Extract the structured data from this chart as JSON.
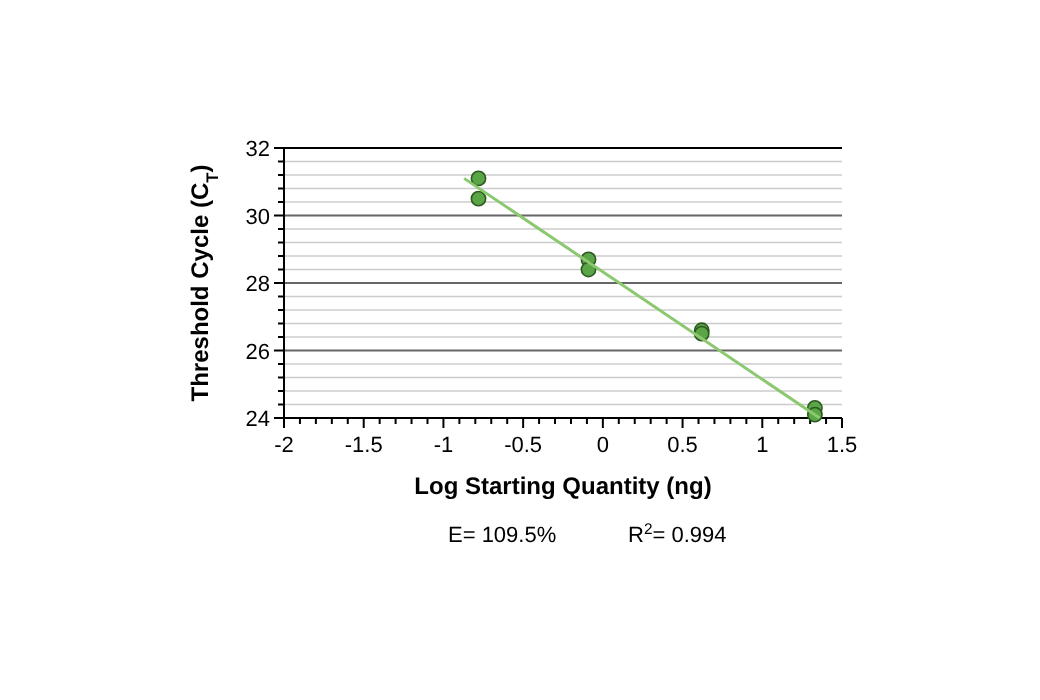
{
  "chart_data": {
    "type": "scatter",
    "xlabel": "Log Starting Quantity (ng)",
    "ylabel": "Threshold Cycle (C$_{T}$)",
    "xlim": [
      -2,
      1.5
    ],
    "ylim": [
      24,
      32
    ],
    "xticks": [
      -2,
      {
        "value": -1.9,
        "label": null
      },
      {
        "value": -1.8,
        "label": null
      },
      {
        "value": -1.7,
        "label": null
      },
      {
        "value": -1.6,
        "label": null
      },
      -1.5,
      {
        "value": -1.4,
        "label": null
      },
      {
        "value": -1.3,
        "label": null
      },
      {
        "value": -1.2,
        "label": null
      },
      {
        "value": -1.1,
        "label": null
      },
      -1,
      {
        "value": -0.9,
        "label": null
      },
      {
        "value": -0.8,
        "label": null
      },
      {
        "value": -0.7,
        "label": null
      },
      {
        "value": -0.6,
        "label": null
      },
      -0.5,
      {
        "value": -0.4,
        "label": null
      },
      {
        "value": -0.3,
        "label": null
      },
      {
        "value": -0.2,
        "label": null
      },
      {
        "value": -0.1,
        "label": null
      },
      0,
      {
        "value": 0.1,
        "label": null
      },
      {
        "value": 0.2,
        "label": null
      },
      {
        "value": 0.3,
        "label": null
      },
      {
        "value": 0.4,
        "label": null
      },
      0.5,
      {
        "value": 0.6,
        "label": null
      },
      {
        "value": 0.7,
        "label": null
      },
      {
        "value": 0.8,
        "label": null
      },
      {
        "value": 0.9,
        "label": null
      },
      1,
      {
        "value": 1.1,
        "label": null
      },
      {
        "value": 1.2,
        "label": null
      },
      {
        "value": 1.3,
        "label": null
      },
      {
        "value": 1.4,
        "label": null
      },
      1.5
    ],
    "yticks": [
      24,
      {
        "value": 24.4,
        "label": null
      },
      {
        "value": 24.8,
        "label": null
      },
      {
        "value": 25.2,
        "label": null
      },
      {
        "value": 25.6,
        "label": null
      },
      26,
      {
        "value": 26.4,
        "label": null
      },
      {
        "value": 26.8,
        "label": null
      },
      {
        "value": 27.2,
        "label": null
      },
      {
        "value": 27.6,
        "label": null
      },
      28,
      {
        "value": 28.4,
        "label": null
      },
      {
        "value": 28.8,
        "label": null
      },
      {
        "value": 29.2,
        "label": null
      },
      {
        "value": 29.6,
        "label": null
      },
      30,
      {
        "value": 30.4,
        "label": null
      },
      {
        "value": 30.8,
        "label": null
      },
      {
        "value": 31.2,
        "label": null
      },
      {
        "value": 31.6,
        "label": null
      },
      32
    ],
    "grid": "y",
    "marker": "circle",
    "series": [
      {
        "color": "#5aa545",
        "x": [
          -0.78,
          -0.78,
          -0.09,
          -0.09,
          0.62,
          0.62,
          1.33,
          1.33
        ],
        "values": [
          31.1,
          30.5,
          28.7,
          28.4,
          26.6,
          26.5,
          24.3,
          24.1
        ]
      },
      {
        "type": "line",
        "color": "#8cc870",
        "marker": "none",
        "x": [
          -0.87,
          1.36
        ],
        "values": [
          31.1,
          24
        ]
      }
    ],
    "annotations": [
      "E= 109.5%",
      "R$^{2}$= 0.994"
    ]
  }
}
